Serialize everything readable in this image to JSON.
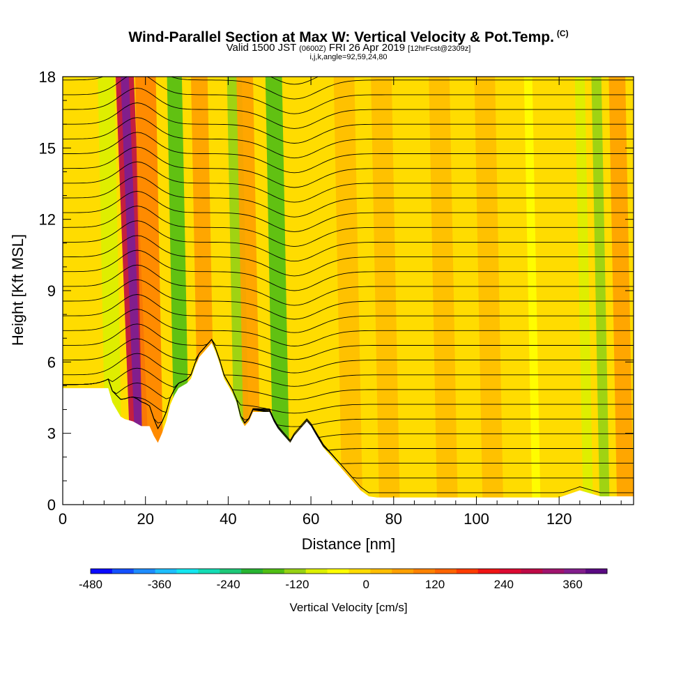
{
  "header": {
    "title": "Wind-Parallel Section at Max W: Vertical Velocity & Pot.Temp.",
    "copyright": "(C)",
    "valid_prefix": "Valid 1500 JST",
    "valid_utc": "(0600Z)",
    "valid_date": "FRI 26 Apr 2019",
    "forecast_info": "[12hrFcst@2309z]",
    "grid_info": "i,j,k,angle=92,59,24,80"
  },
  "chart_data": {
    "type": "heatmap",
    "title": "Wind-Parallel Section at Max W: Vertical Velocity & Pot.Temp.",
    "xlabel": "Distance [nm]",
    "ylabel": "Height [Kft MSL]",
    "xlim": [
      0,
      138
    ],
    "ylim": [
      0,
      18
    ],
    "x_ticks": [
      0,
      20,
      40,
      60,
      80,
      100,
      120
    ],
    "y_ticks": [
      0,
      3,
      6,
      9,
      12,
      15,
      18
    ],
    "colorbar": {
      "label": "Vertical Velocity [cm/s]",
      "min": -480,
      "max": 420,
      "step": 40,
      "tick_values": [
        -480,
        -360,
        -240,
        -120,
        0,
        120,
        240,
        360
      ],
      "tick_labels": [
        "-480",
        "-360",
        "-240",
        "-120",
        "0",
        "120",
        "240",
        "360"
      ],
      "colors": [
        "#0a0aff",
        "#1450ff",
        "#1e8cff",
        "#1ebeff",
        "#14e6f0",
        "#14dcb4",
        "#1ec878",
        "#28b432",
        "#50be14",
        "#96d214",
        "#dcf000",
        "#ffff00",
        "#ffdc00",
        "#ffbe00",
        "#ffa000",
        "#ff8200",
        "#ff6400",
        "#ff3c00",
        "#f01414",
        "#dc0a32",
        "#be0a46",
        "#a0146e",
        "#821e8c",
        "#5a0a82"
      ]
    },
    "terrain_kft": [
      [
        0,
        4.9
      ],
      [
        7,
        4.9
      ],
      [
        11,
        4.9
      ],
      [
        12,
        4.3
      ],
      [
        13,
        4.0
      ],
      [
        14,
        3.7
      ],
      [
        15,
        3.6
      ],
      [
        17,
        3.5
      ],
      [
        19,
        3.3
      ],
      [
        21,
        3.3
      ],
      [
        22,
        2.9
      ],
      [
        23,
        2.6
      ],
      [
        24,
        3.0
      ],
      [
        25,
        3.5
      ],
      [
        26,
        4.2
      ],
      [
        27,
        4.6
      ],
      [
        28,
        4.9
      ],
      [
        29,
        5.0
      ],
      [
        30,
        5.1
      ],
      [
        31,
        5.3
      ],
      [
        32,
        5.8
      ],
      [
        33,
        6.2
      ],
      [
        34,
        6.4
      ],
      [
        35,
        6.6
      ],
      [
        36,
        6.8
      ],
      [
        37,
        6.4
      ],
      [
        38,
        5.9
      ],
      [
        39,
        5.3
      ],
      [
        40,
        5.0
      ],
      [
        41,
        4.7
      ],
      [
        42,
        4.3
      ],
      [
        43,
        3.6
      ],
      [
        44,
        3.3
      ],
      [
        45,
        3.5
      ],
      [
        46,
        3.9
      ],
      [
        50,
        3.9
      ],
      [
        51,
        3.5
      ],
      [
        52,
        3.2
      ],
      [
        53,
        3.0
      ],
      [
        54,
        2.8
      ],
      [
        55,
        2.6
      ],
      [
        56,
        2.9
      ],
      [
        57,
        3.1
      ],
      [
        58,
        3.3
      ],
      [
        59,
        3.5
      ],
      [
        60,
        3.3
      ],
      [
        61,
        3.0
      ],
      [
        62,
        2.7
      ],
      [
        63,
        2.4
      ],
      [
        64,
        2.2
      ],
      [
        65,
        2.0
      ],
      [
        66,
        1.8
      ],
      [
        67,
        1.6
      ],
      [
        68,
        1.4
      ],
      [
        69,
        1.2
      ],
      [
        70,
        1.0
      ],
      [
        71,
        0.8
      ],
      [
        72,
        0.6
      ],
      [
        74,
        0.35
      ],
      [
        76,
        0.3
      ],
      [
        120,
        0.3
      ],
      [
        125,
        0.6
      ],
      [
        130,
        0.35
      ],
      [
        138,
        0.35
      ]
    ],
    "vertical_velocity_bands": [
      {
        "x": 12.5,
        "width": 2.0,
        "value": -60
      },
      {
        "x": 19.0,
        "width": 2.2,
        "value": 320
      },
      {
        "x": 22.0,
        "width": 2.5,
        "value": 120
      },
      {
        "x": 29.0,
        "width": 1.8,
        "value": -130
      },
      {
        "x": 35.0,
        "width": 2.0,
        "value": 80
      },
      {
        "x": 43.5,
        "width": 1.8,
        "value": -100
      },
      {
        "x": 46.0,
        "width": 2.0,
        "value": 100
      },
      {
        "x": 53.0,
        "width": 2.0,
        "value": -150
      },
      {
        "x": 70.0,
        "width": 2.5,
        "value": 60
      },
      {
        "x": 79.0,
        "width": 2.5,
        "value": 60
      },
      {
        "x": 93.0,
        "width": 2.5,
        "value": 50
      },
      {
        "x": 104.0,
        "width": 2.5,
        "value": 50
      },
      {
        "x": 114.5,
        "width": 1.0,
        "value": -40
      },
      {
        "x": 127.0,
        "width": 1.2,
        "value": -60
      },
      {
        "x": 131.0,
        "width": 1.2,
        "value": -90
      },
      {
        "x": 136.0,
        "width": 2.0,
        "value": 80
      }
    ],
    "pot_temp_interval_K": 2
  }
}
